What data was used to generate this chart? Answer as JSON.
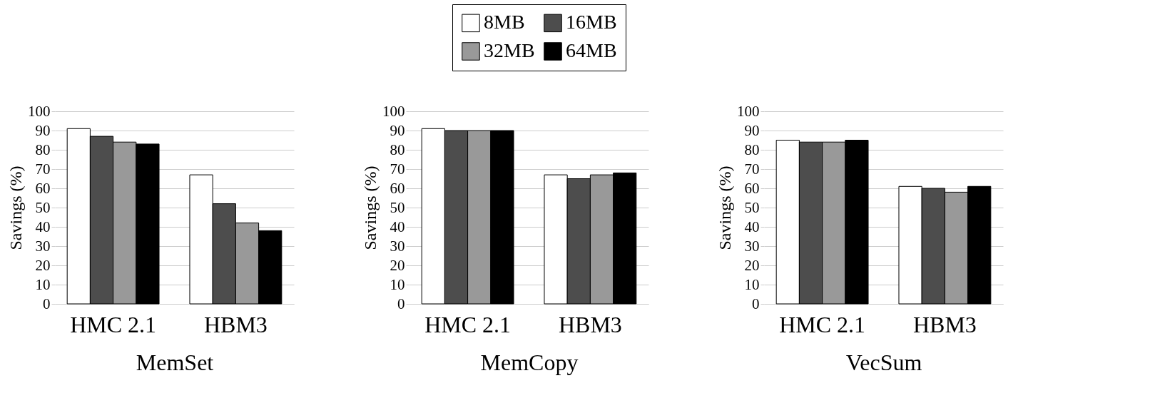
{
  "chart_data": [
    {
      "type": "bar",
      "xlabel": "MemSet",
      "ylabel": "Savings (%)",
      "categories": [
        "HMC 2.1",
        "HBM3"
      ],
      "ylim": [
        0,
        100
      ],
      "yticks": [
        0,
        10,
        20,
        30,
        40,
        50,
        60,
        70,
        80,
        90,
        100
      ],
      "grid": "y",
      "legend": false,
      "series": [
        {
          "color": "#ffffff",
          "values": [
            91,
            67
          ]
        },
        {
          "color": "#4d4d4d",
          "values": [
            87,
            52
          ]
        },
        {
          "color": "#999999",
          "values": [
            84,
            42
          ]
        },
        {
          "color": "#000000",
          "values": [
            83,
            38
          ]
        }
      ]
    },
    {
      "type": "bar",
      "xlabel": "MemCopy",
      "ylabel": "Savings (%)",
      "categories": [
        "HMC 2.1",
        "HBM3"
      ],
      "ylim": [
        0,
        100
      ],
      "yticks": [
        0,
        10,
        20,
        30,
        40,
        50,
        60,
        70,
        80,
        90,
        100
      ],
      "grid": "y",
      "legend": "top",
      "series": [
        {
          "name": "8MB",
          "color": "#ffffff",
          "values": [
            91,
            67
          ]
        },
        {
          "name": "16MB",
          "color": "#4d4d4d",
          "values": [
            90,
            65
          ]
        },
        {
          "name": "32MB",
          "color": "#999999",
          "values": [
            90,
            67
          ]
        },
        {
          "name": "64MB",
          "color": "#000000",
          "values": [
            90,
            68
          ]
        }
      ]
    },
    {
      "type": "bar",
      "xlabel": "VecSum",
      "ylabel": "Savings (%)",
      "categories": [
        "HMC 2.1",
        "HBM3"
      ],
      "ylim": [
        0,
        100
      ],
      "yticks": [
        0,
        10,
        20,
        30,
        40,
        50,
        60,
        70,
        80,
        90,
        100
      ],
      "grid": "y",
      "legend": false,
      "series": [
        {
          "color": "#ffffff",
          "values": [
            85,
            61
          ]
        },
        {
          "color": "#4d4d4d",
          "values": [
            84,
            60
          ]
        },
        {
          "color": "#999999",
          "values": [
            84,
            58
          ]
        },
        {
          "color": "#000000",
          "values": [
            85,
            61
          ]
        }
      ]
    }
  ]
}
